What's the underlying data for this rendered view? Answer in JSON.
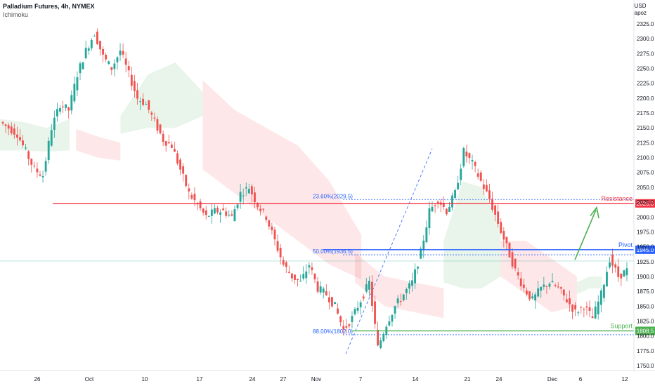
{
  "header": {
    "title": "Palladium Futures, 4h, NYMEX",
    "indicator": "Ichimoku",
    "currency": "USD",
    "unit": "apoz"
  },
  "colors": {
    "bull": "#26a69a",
    "bear": "#ef5350",
    "resistance": "#f23645",
    "pivot": "#2962ff",
    "support": "#4caf50",
    "cloud_green": "#4caf50",
    "cloud_red": "#f23645",
    "fib_line": "#2962ff"
  },
  "chart_data": {
    "type": "candlestick",
    "y_axis": {
      "min": 1750,
      "max": 2350,
      "ticks": [
        "2325.0",
        "2300.0",
        "2275.0",
        "2250.0",
        "2225.0",
        "2200.0",
        "2175.0",
        "2150.0",
        "2125.0",
        "2100.0",
        "2075.0",
        "2050.0",
        "2025.0",
        "2000.0",
        "1975.0",
        "1950.0",
        "1925.0",
        "1900.0",
        "1875.0",
        "1850.0",
        "1825.0",
        "1800.0",
        "1775.0",
        "1750.0"
      ]
    },
    "x_axis": {
      "ticks": [
        "26",
        "Oct",
        "10",
        "17",
        "24",
        "27",
        "Nov",
        "7",
        "14",
        "21",
        "24",
        "Dec",
        "6",
        "12"
      ]
    },
    "levels": [
      {
        "name": "Resistance",
        "value": 2023.0,
        "tag": "2023.0"
      },
      {
        "name": "Pivot",
        "value": 1945.0,
        "tag": "1945.0"
      },
      {
        "name": "Support",
        "value": 1808.5,
        "tag": "1808.5"
      }
    ],
    "fib_labels": [
      "23.60%(2029.5)",
      "50.00%(1936.5)",
      "88.00%(1802.0)"
    ],
    "fib_values": [
      2029.5,
      1936.5,
      1802.0
    ],
    "close_path": [
      2160,
      2150,
      2140,
      2110,
      2080,
      2070,
      2150,
      2190,
      2180,
      2240,
      2280,
      2310,
      2270,
      2250,
      2280,
      2240,
      2200,
      2190,
      2160,
      2130,
      2120,
      2080,
      2040,
      2020,
      2000,
      2010,
      2010,
      2000,
      2040,
      2050,
      2020,
      2000,
      1960,
      1920,
      1900,
      1890,
      1920,
      1880,
      1870,
      1850,
      1810,
      1830,
      1860,
      1890,
      1780,
      1820,
      1850,
      1870,
      1890,
      1940,
      2010,
      2030,
      2010,
      2040,
      2110,
      2090,
      2060,
      2030,
      1990,
      1950,
      1910,
      1880,
      1860,
      1880,
      1890,
      1880,
      1860,
      1840,
      1850,
      1830,
      1870,
      1930,
      1900,
      1910
    ],
    "ichimoku_cloud": [
      {
        "color": "green",
        "start": 0.0,
        "end": 0.11,
        "upper": [
          2165,
          2160,
          2150,
          2165
        ],
        "lower": [
          2112,
          2112,
          2110,
          2112
        ]
      },
      {
        "color": "red",
        "start": 0.12,
        "end": 0.19,
        "upper": [
          2148,
          2135,
          2125
        ],
        "lower": [
          2112,
          2100,
          2095
        ]
      },
      {
        "color": "green",
        "start": 0.19,
        "end": 0.32,
        "upper": [
          2170,
          2240,
          2260,
          2210
        ],
        "lower": [
          2140,
          2150,
          2150,
          2170
        ]
      },
      {
        "color": "red",
        "start": 0.32,
        "end": 0.57,
        "upper": [
          2230,
          2180,
          2150,
          2120,
          2060,
          1970
        ],
        "lower": [
          2080,
          2040,
          2000,
          1960,
          1920,
          1895
        ]
      },
      {
        "color": "red",
        "start": 0.56,
        "end": 0.7,
        "upper": [
          1940,
          1900,
          1890,
          1880
        ],
        "lower": [
          1890,
          1850,
          1840,
          1830
        ]
      },
      {
        "color": "green",
        "start": 0.7,
        "end": 0.79,
        "upper": [
          1960,
          2060,
          2050,
          1980
        ],
        "lower": [
          1890,
          1880,
          1880,
          1900
        ]
      },
      {
        "color": "red",
        "start": 0.79,
        "end": 0.91,
        "upper": [
          1960,
          1960,
          1930,
          1900
        ],
        "lower": [
          1900,
          1870,
          1840,
          1850
        ]
      },
      {
        "color": "green",
        "start": 0.91,
        "end": 0.95,
        "upper": [
          1890,
          1900,
          1900
        ],
        "lower": [
          1870,
          1880,
          1880
        ]
      }
    ],
    "grid": false,
    "legend": "none"
  }
}
